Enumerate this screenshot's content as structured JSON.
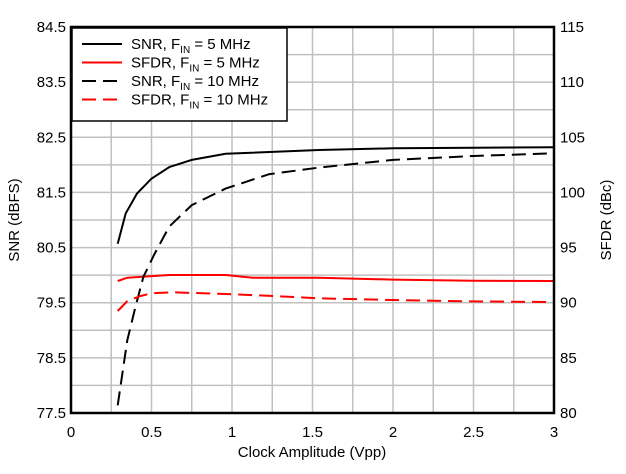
{
  "chart_data": {
    "type": "line",
    "title": "",
    "xlabel": "Clock Amplitude (Vpp)",
    "ylabel": "SNR (dBFS)",
    "y2label": "SFDR (dBc)",
    "xlim": [
      0,
      3
    ],
    "ylim": [
      77.5,
      84.5
    ],
    "y2lim": [
      80,
      115
    ],
    "xticks": [
      "0",
      "0.5",
      "1",
      "1.5",
      "2",
      "2.5",
      "3"
    ],
    "yticks": [
      "77.5",
      "78.5",
      "79.5",
      "80.5",
      "81.5",
      "82.5",
      "83.5",
      "84.5"
    ],
    "y2ticks": [
      "80",
      "85",
      "90",
      "95",
      "100",
      "105",
      "110",
      "115"
    ],
    "grid": true,
    "legend_position": "top-left",
    "series": [
      {
        "name": "SNR, FIN = 5 MHz",
        "name_parts": [
          "SNR, F",
          "IN",
          " = 5 MHz"
        ],
        "axis": "left",
        "color": "#000000",
        "dash": "solid",
        "x": [
          0.29,
          0.34,
          0.41,
          0.5,
          0.61,
          0.75,
          0.96,
          1.54,
          2,
          2.5,
          3
        ],
        "y": [
          80.57,
          81.12,
          81.48,
          81.75,
          81.96,
          82.09,
          82.2,
          82.27,
          82.3,
          82.31,
          82.32
        ]
      },
      {
        "name": "SFDR, FIN = 5 MHz",
        "name_parts": [
          "SFDR, F",
          "IN",
          " = 5 MHz"
        ],
        "axis": "right",
        "color": "#ff0000",
        "dash": "solid",
        "x": [
          0.29,
          0.35,
          0.61,
          0.96,
          1.13,
          1.54,
          2,
          2.5,
          3
        ],
        "y": [
          91.97,
          92.27,
          92.51,
          92.51,
          92.27,
          92.27,
          92.1,
          92.0,
          91.97
        ]
      },
      {
        "name": "SNR, FIN = 10 MHz",
        "name_parts": [
          "SNR, F",
          "IN",
          " = 10 MHz"
        ],
        "axis": "left",
        "color": "#000000",
        "dash": "dashed",
        "x": [
          0.29,
          0.35,
          0.4,
          0.45,
          0.52,
          0.61,
          0.75,
          0.96,
          1.23,
          1.54,
          2,
          2.5,
          3
        ],
        "y": [
          77.64,
          78.82,
          79.42,
          79.97,
          80.39,
          80.88,
          81.27,
          81.57,
          81.83,
          81.95,
          82.09,
          82.16,
          82.21
        ]
      },
      {
        "name": "SFDR, FIN = 10 MHz",
        "name_parts": [
          "SFDR, F",
          "IN",
          " = 10 MHz"
        ],
        "axis": "right",
        "color": "#ff0000",
        "dash": "dashed",
        "x": [
          0.29,
          0.35,
          0.43,
          0.5,
          0.63,
          0.96,
          1.27,
          1.54,
          2,
          2.5,
          3
        ],
        "y": [
          89.25,
          90.15,
          90.6,
          90.85,
          90.94,
          90.79,
          90.6,
          90.4,
          90.25,
          90.12,
          90.06
        ]
      }
    ]
  }
}
